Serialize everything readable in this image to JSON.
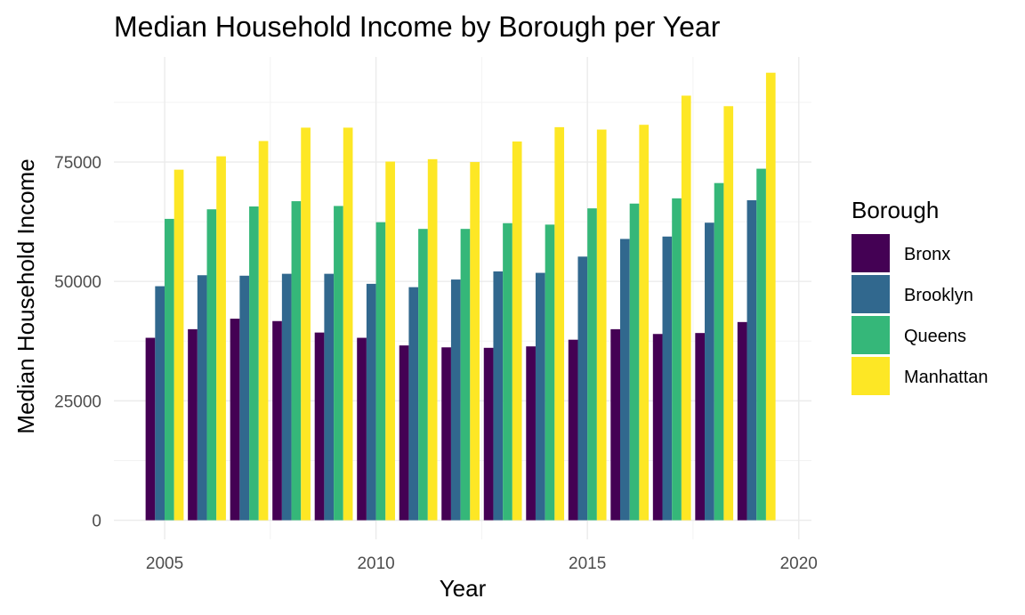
{
  "chart_data": {
    "type": "bar",
    "title": "Median Household Income by Borough per Year",
    "xlabel": "Year",
    "ylabel": "Median Household Income",
    "x": [
      2005,
      2006,
      2007,
      2008,
      2009,
      2010,
      2011,
      2012,
      2013,
      2014,
      2015,
      2016,
      2017,
      2018,
      2019
    ],
    "xlim": [
      2003.8,
      2020.3
    ],
    "ylim": [
      -4000,
      97000
    ],
    "x_ticks": [
      2005,
      2010,
      2015,
      2020
    ],
    "y_ticks": [
      0,
      25000,
      50000,
      75000
    ],
    "x_tick_labels": [
      "2005",
      "2010",
      "2015",
      "2020"
    ],
    "y_tick_labels": [
      "0",
      "25000",
      "50000",
      "75000"
    ],
    "grid": true,
    "legend": {
      "title": "Borough",
      "position": "right"
    },
    "series": [
      {
        "name": "Bronx",
        "color": "#440154",
        "values": [
          38200,
          40000,
          42200,
          41700,
          39300,
          38200,
          36600,
          36200,
          36100,
          36400,
          37800,
          40000,
          39000,
          39200,
          41500
        ]
      },
      {
        "name": "Brooklyn",
        "color": "#31688E",
        "values": [
          49000,
          51300,
          51200,
          51600,
          51600,
          49500,
          48800,
          50400,
          52100,
          51800,
          55200,
          58900,
          59400,
          62300,
          67000
        ]
      },
      {
        "name": "Queens",
        "color": "#35B779",
        "values": [
          63100,
          65100,
          65700,
          66800,
          65800,
          62400,
          61000,
          61000,
          62200,
          61900,
          65300,
          66300,
          67400,
          70600,
          73600
        ]
      },
      {
        "name": "Manhattan",
        "color": "#FDE725",
        "values": [
          73400,
          76200,
          79400,
          82200,
          82200,
          75100,
          75600,
          75000,
          79300,
          82300,
          81800,
          82800,
          88900,
          86700,
          93700
        ]
      }
    ]
  }
}
